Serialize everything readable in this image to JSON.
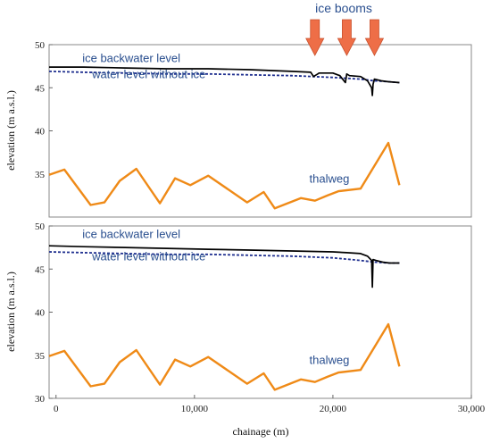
{
  "chart_data": [
    {
      "type": "line",
      "panel": "top",
      "ylabel": "elevation (m a.s.l.)",
      "xlabel": "",
      "xlim": [
        -500,
        30000
      ],
      "ylim": [
        30,
        50
      ],
      "xticks": [],
      "yticks": [
        {
          "v": 35,
          "label": "35"
        },
        {
          "v": 40,
          "label": "40"
        },
        {
          "v": 45,
          "label": "45"
        },
        {
          "v": 50,
          "label": "50"
        }
      ],
      "series": [
        {
          "key": "ice",
          "color": "#000000",
          "x": [
            -500,
            2000,
            5000,
            8000,
            11000,
            14000,
            17000,
            18400,
            18600,
            18900,
            19000,
            20000,
            20500,
            20900,
            21000,
            21200,
            22000,
            22500,
            22800,
            22850,
            22900,
            23000,
            23500,
            24000,
            24800
          ],
          "y": [
            47.4,
            47.4,
            47.3,
            47.2,
            47.2,
            47.1,
            46.9,
            46.8,
            46.3,
            46.6,
            46.7,
            46.7,
            46.4,
            45.6,
            46.6,
            46.4,
            46.3,
            45.8,
            45.0,
            44.1,
            45.4,
            46.0,
            45.8,
            45.7,
            45.6
          ]
        },
        {
          "key": "noice",
          "color": "#1f2f8f",
          "x": [
            -500,
            2000,
            5000,
            8000,
            11000,
            14000,
            17000,
            20000,
            22000,
            23000,
            24000,
            24800
          ],
          "y": [
            46.9,
            46.8,
            46.7,
            46.6,
            46.6,
            46.5,
            46.4,
            46.2,
            46.0,
            45.8,
            45.7,
            45.6
          ]
        },
        {
          "key": "thalweg",
          "color": "#ef8a17",
          "x": [
            -500,
            600,
            2500,
            3500,
            4600,
            5800,
            7500,
            8600,
            9700,
            11000,
            13800,
            15000,
            15800,
            17700,
            18700,
            19600,
            20400,
            22000,
            24000,
            24800
          ],
          "y": [
            34.9,
            35.5,
            31.4,
            31.7,
            34.2,
            35.6,
            31.6,
            34.5,
            33.7,
            34.8,
            31.7,
            32.9,
            31.0,
            32.2,
            31.9,
            32.5,
            33.0,
            33.3,
            38.6,
            33.7
          ]
        }
      ],
      "annotations": [
        {
          "key": "ice_label",
          "text": "ice backwater level",
          "x": 1900,
          "y": 48.0
        },
        {
          "key": "noice_label",
          "text": "water level without ice",
          "x": 2600,
          "y": 46.1
        },
        {
          "key": "thalweg_label",
          "text": "thalweg",
          "x": 18300,
          "y": 34.0
        }
      ],
      "booms": {
        "label": "ice booms",
        "x": [
          18700,
          21000,
          23000
        ],
        "color": "#ee6e47"
      }
    },
    {
      "type": "line",
      "panel": "bottom",
      "ylabel": "elevation (m a.s.l.)",
      "xlabel": "chainage (m)",
      "xlim": [
        -500,
        30000
      ],
      "ylim": [
        30,
        50
      ],
      "xticks": [
        {
          "v": 0,
          "label": "0"
        },
        {
          "v": 10000,
          "label": "10,000"
        },
        {
          "v": 20000,
          "label": "20,000"
        },
        {
          "v": 30000,
          "label": "30,000"
        }
      ],
      "yticks": [
        {
          "v": 30,
          "label": "30"
        },
        {
          "v": 35,
          "label": "35"
        },
        {
          "v": 40,
          "label": "40"
        },
        {
          "v": 45,
          "label": "45"
        },
        {
          "v": 50,
          "label": "50"
        }
      ],
      "series": [
        {
          "key": "ice",
          "color": "#000000",
          "x": [
            -500,
            2000,
            5000,
            8000,
            11000,
            14000,
            17000,
            20000,
            21000,
            22000,
            22500,
            22800,
            22850,
            22900,
            23100,
            23600,
            24100,
            24800
          ],
          "y": [
            47.7,
            47.6,
            47.5,
            47.4,
            47.3,
            47.2,
            47.1,
            47.0,
            46.9,
            46.8,
            46.5,
            46.0,
            42.9,
            46.1,
            46.0,
            45.8,
            45.7,
            45.7
          ]
        },
        {
          "key": "noice",
          "color": "#1f2f8f",
          "x": [
            -500,
            2000,
            5000,
            8000,
            11000,
            14000,
            17000,
            20000,
            22000,
            23000,
            24000,
            24800
          ],
          "y": [
            47.0,
            46.9,
            46.8,
            46.7,
            46.7,
            46.6,
            46.5,
            46.3,
            46.0,
            45.8,
            45.7,
            45.7
          ]
        },
        {
          "key": "thalweg",
          "color": "#ef8a17",
          "x": [
            -500,
            600,
            2500,
            3500,
            4600,
            5800,
            7500,
            8600,
            9700,
            11000,
            13800,
            15000,
            15800,
            17700,
            18700,
            19600,
            20400,
            22000,
            24000,
            24800
          ],
          "y": [
            34.9,
            35.5,
            31.4,
            31.7,
            34.2,
            35.6,
            31.6,
            34.5,
            33.7,
            34.8,
            31.7,
            32.9,
            31.0,
            32.2,
            31.9,
            32.5,
            33.0,
            33.3,
            38.6,
            33.7
          ]
        }
      ],
      "annotations": [
        {
          "key": "ice_label",
          "text": "ice backwater level",
          "x": 1900,
          "y": 48.6
        },
        {
          "key": "noice_label",
          "text": "water level without ice",
          "x": 2600,
          "y": 46.0
        },
        {
          "key": "thalweg_label",
          "text": "thalweg",
          "x": 18300,
          "y": 34.0
        }
      ]
    }
  ]
}
